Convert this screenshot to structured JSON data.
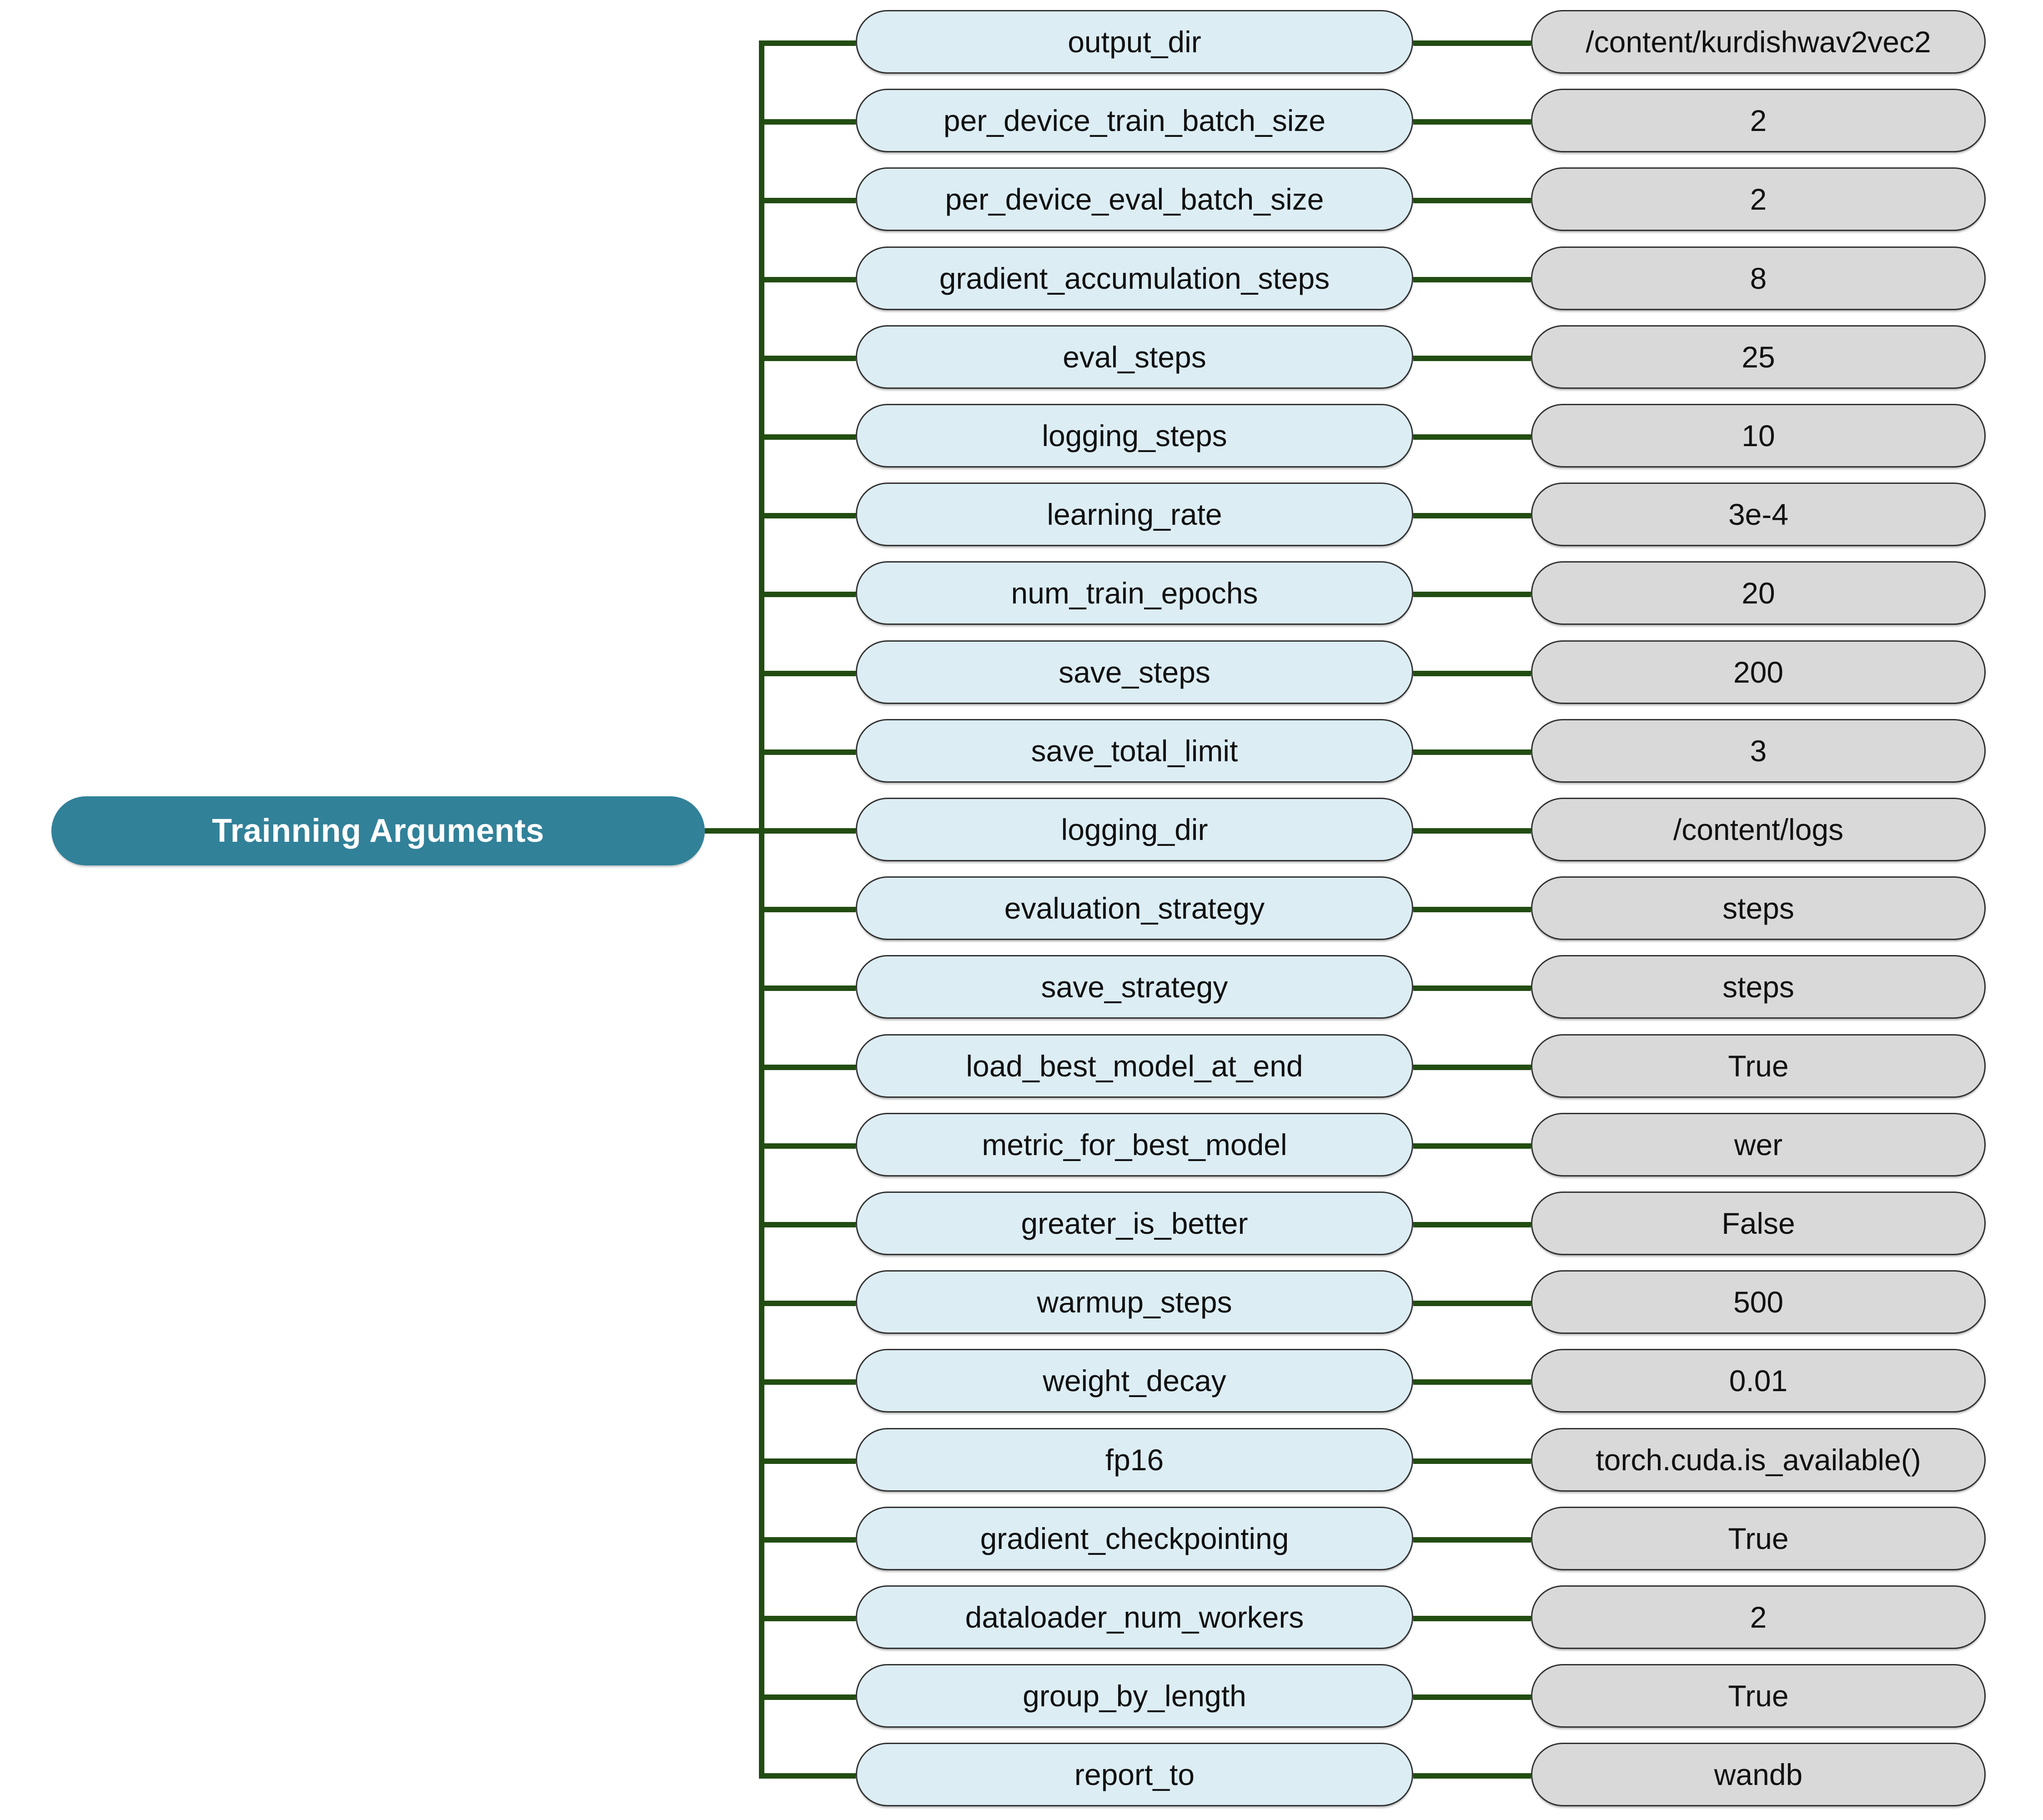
{
  "title": "Trainning Arguments diagram",
  "colors": {
    "root_fill": "#318199",
    "root_text": "#ffffff",
    "param_pill_fill": "#dcedf4",
    "value_pill_fill": "#d9d9d9",
    "pill_border": "#333333",
    "connector_line": "#224d12",
    "background": "#ffffff",
    "pill_text": "#111111"
  },
  "root": {
    "label": "Trainning Arguments"
  },
  "rows": [
    {
      "param": "output_dir",
      "value": "/content/kurdishwav2vec2"
    },
    {
      "param": "per_device_train_batch_size",
      "value": "2"
    },
    {
      "param": "per_device_eval_batch_size",
      "value": "2"
    },
    {
      "param": "gradient_accumulation_steps",
      "value": "8"
    },
    {
      "param": "eval_steps",
      "value": "25"
    },
    {
      "param": "logging_steps",
      "value": "10"
    },
    {
      "param": "learning_rate",
      "value": "3e-4"
    },
    {
      "param": "num_train_epochs",
      "value": "20"
    },
    {
      "param": "save_steps",
      "value": "200"
    },
    {
      "param": "save_total_limit",
      "value": "3"
    },
    {
      "param": "logging_dir",
      "value": "/content/logs"
    },
    {
      "param": "evaluation_strategy",
      "value": "steps"
    },
    {
      "param": "save_strategy",
      "value": "steps"
    },
    {
      "param": "load_best_model_at_end",
      "value": "True"
    },
    {
      "param": "metric_for_best_model",
      "value": "wer"
    },
    {
      "param": "greater_is_better",
      "value": "False"
    },
    {
      "param": "warmup_steps",
      "value": "500"
    },
    {
      "param": "weight_decay",
      "value": "0.01"
    },
    {
      "param": "fp16",
      "value": "torch.cuda.is_available()"
    },
    {
      "param": "gradient_checkpointing",
      "value": "True"
    },
    {
      "param": "dataloader_num_workers",
      "value": "2"
    },
    {
      "param": "group_by_length",
      "value": "True"
    },
    {
      "param": "report_to",
      "value": "wandb"
    }
  ]
}
